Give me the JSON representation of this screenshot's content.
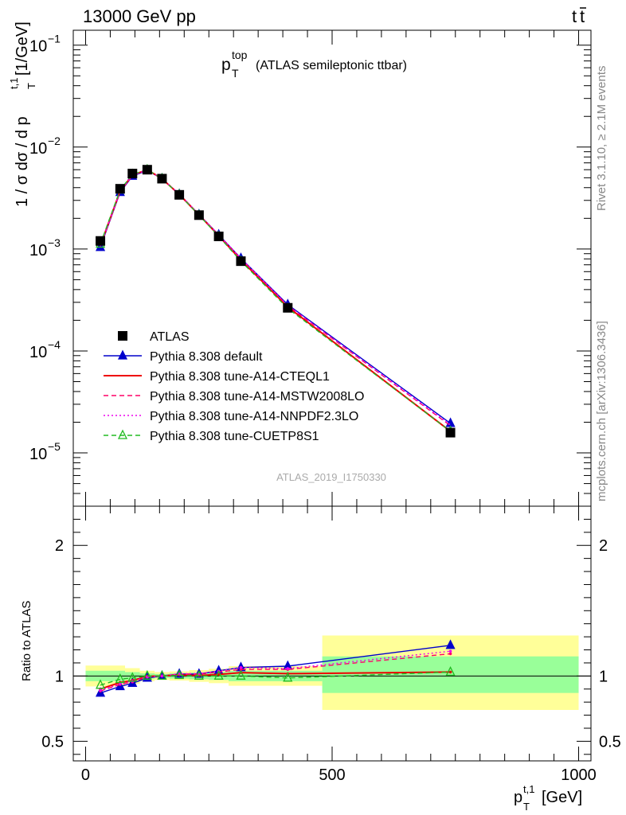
{
  "header": {
    "left": "13000 GeV pp",
    "right_main": "t",
    "right_bar": "t"
  },
  "title": {
    "main": "p",
    "sub": "T",
    "sup": "top",
    "rest": "(ATLAS semileptonic ttbar)"
  },
  "side": {
    "rivet": "Rivet 3.1.10, ≥ 2.1M events",
    "mcplots": "mcplots.cern.ch [arXiv:1306.3436]"
  },
  "analysis_id": "ATLAS_2019_I1750330",
  "ylabel_main": {
    "pre": "1 / σ dσ / d p",
    "sub": "T",
    "sup": "t,1",
    "post": " [1/GeV]"
  },
  "ylabel_ratio": "Ratio to ATLAS",
  "xlabel": {
    "pre": "p",
    "sub": "T",
    "sup": "t,1",
    "post": " [GeV]"
  },
  "chart_data": [
    {
      "type": "line",
      "panel": "main",
      "yscale": "log",
      "xlim": [
        -25,
        1025
      ],
      "ylim": [
        3e-06,
        0.14
      ],
      "major_ticks": [
        {
          "value": 1e-05,
          "mantissa": "10",
          "exp": "−5"
        },
        {
          "value": 0.0001,
          "mantissa": "10",
          "exp": "−4"
        },
        {
          "value": 0.001,
          "mantissa": "10",
          "exp": "−3"
        },
        {
          "value": 0.01,
          "mantissa": "10",
          "exp": "−2"
        },
        {
          "value": 0.1,
          "mantissa": "10",
          "exp": "−1"
        }
      ],
      "x": [
        30,
        70,
        95,
        125,
        155,
        190,
        230,
        270,
        315,
        410,
        740
      ],
      "series": [
        {
          "name": "ATLAS",
          "color": "#000000",
          "marker": "square",
          "line": "none",
          "values": [
            0.0012,
            0.0039,
            0.0055,
            0.006,
            0.0049,
            0.0034,
            0.00215,
            0.00133,
            0.00076,
            0.000265,
            1.58e-05
          ]
        },
        {
          "name": "Pythia 8.308 default",
          "color": "#0000cc",
          "marker": "triangle",
          "line": "solid",
          "values": [
            0.00104,
            0.0036,
            0.0052,
            0.0059,
            0.0049,
            0.00345,
            0.00218,
            0.00138,
            0.00081,
            0.000285,
            1.95e-05
          ]
        },
        {
          "name": "Pythia 8.308 tune-A14-CTEQL1",
          "color": "#ee0000",
          "marker": "none",
          "line": "solid",
          "values": [
            0.00108,
            0.0037,
            0.0053,
            0.006,
            0.0049,
            0.00343,
            0.00216,
            0.00135,
            0.00078,
            0.00027,
            1.63e-05
          ]
        },
        {
          "name": "Pythia 8.308 tune-A14-MSTW2008LO",
          "color": "#ff0066",
          "marker": "none",
          "line": "dashed",
          "values": [
            0.00106,
            0.00365,
            0.00525,
            0.00595,
            0.0049,
            0.00345,
            0.00218,
            0.00137,
            0.0008,
            0.000278,
            1.85e-05
          ]
        },
        {
          "name": "Pythia 8.308 tune-A14-NNPDF2.3LO",
          "color": "#ee00ee",
          "marker": "none",
          "line": "dotted",
          "values": [
            0.00107,
            0.00368,
            0.00528,
            0.00598,
            0.0049,
            0.00346,
            0.00219,
            0.00138,
            0.00081,
            0.00028,
            1.88e-05
          ]
        },
        {
          "name": "Pythia 8.308 tune-CUETP8S1",
          "color": "#22bb22",
          "marker": "open-triangle",
          "line": "dashed",
          "values": [
            0.00112,
            0.0038,
            0.0054,
            0.006,
            0.0049,
            0.00342,
            0.00215,
            0.00133,
            0.00076,
            0.000262,
            1.63e-05
          ]
        }
      ]
    },
    {
      "type": "line",
      "panel": "ratio",
      "xlim": [
        -25,
        1025
      ],
      "ylim": [
        0.35,
        2.3
      ],
      "major_ticks": [
        0.5,
        1,
        2
      ],
      "x_ticks": [
        0,
        500,
        1000
      ],
      "bands": [
        {
          "xmin": 0,
          "xmax": 80,
          "green": [
            0.96,
            1.04
          ],
          "yellow": [
            0.92,
            1.08
          ]
        },
        {
          "xmin": 80,
          "xmax": 110,
          "green": [
            0.97,
            1.03
          ],
          "yellow": [
            0.94,
            1.06
          ]
        },
        {
          "xmin": 110,
          "xmax": 140,
          "green": [
            0.98,
            1.02
          ],
          "yellow": [
            0.96,
            1.04
          ]
        },
        {
          "xmin": 140,
          "xmax": 170,
          "green": [
            0.985,
            1.015
          ],
          "yellow": [
            0.97,
            1.03
          ]
        },
        {
          "xmin": 170,
          "xmax": 210,
          "green": [
            0.98,
            1.02
          ],
          "yellow": [
            0.965,
            1.035
          ]
        },
        {
          "xmin": 210,
          "xmax": 250,
          "green": [
            0.975,
            1.025
          ],
          "yellow": [
            0.955,
            1.045
          ]
        },
        {
          "xmin": 250,
          "xmax": 290,
          "green": [
            0.97,
            1.03
          ],
          "yellow": [
            0.945,
            1.055
          ]
        },
        {
          "xmin": 290,
          "xmax": 480,
          "green": [
            0.96,
            1.04
          ],
          "yellow": [
            0.925,
            1.075
          ]
        },
        {
          "xmin": 480,
          "xmax": 1000,
          "green": [
            0.87,
            1.15
          ],
          "yellow": [
            0.74,
            1.31
          ]
        }
      ],
      "x": [
        30,
        70,
        95,
        125,
        155,
        190,
        230,
        270,
        315,
        410,
        740
      ],
      "series": [
        {
          "name": "Pythia 8.308 default",
          "values": [
            0.87,
            0.92,
            0.945,
            0.985,
            1.0,
            1.015,
            1.015,
            1.04,
            1.065,
            1.075,
            1.235
          ]
        },
        {
          "name": "Pythia 8.308 tune-A14-CTEQL1",
          "values": [
            0.9,
            0.95,
            0.965,
            0.998,
            1.0,
            1.008,
            1.004,
            1.012,
            1.026,
            1.018,
            1.03
          ]
        },
        {
          "name": "Pythia 8.308 tune-A14-MSTW2008LO",
          "values": [
            0.885,
            0.935,
            0.955,
            0.992,
            1.0,
            1.014,
            1.014,
            1.03,
            1.05,
            1.05,
            1.17
          ]
        },
        {
          "name": "Pythia 8.308 tune-A14-NNPDF2.3LO",
          "values": [
            0.89,
            0.94,
            0.96,
            0.995,
            1.0,
            1.017,
            1.019,
            1.037,
            1.065,
            1.057,
            1.19
          ]
        },
        {
          "name": "Pythia 8.308 tune-CUETP8S1",
          "values": [
            0.93,
            0.975,
            0.985,
            1.0,
            1.0,
            1.005,
            1.0,
            1.0,
            1.0,
            0.985,
            1.03
          ]
        }
      ]
    }
  ]
}
